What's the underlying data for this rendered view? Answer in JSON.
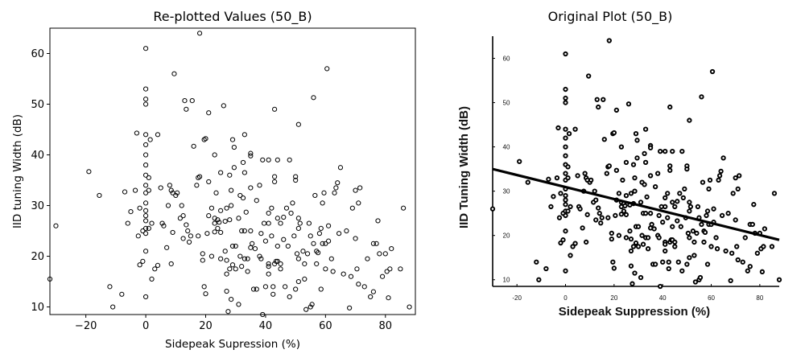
{
  "chart_data": [
    {
      "type": "scatter",
      "title": "Re-plotted Values (50_B)",
      "xlabel": "Sidepeak Supression (%)",
      "ylabel": "IID tuning Width (dB)",
      "xlim": [
        -32,
        90
      ],
      "ylim": [
        8.5,
        65
      ],
      "xticks": [
        -20,
        0,
        20,
        40,
        60,
        80
      ],
      "yticks": [
        10,
        20,
        30,
        40,
        50,
        60
      ],
      "marker": "open-circle",
      "points": [
        [
          -32,
          15.5
        ],
        [
          -30,
          26
        ],
        [
          -19,
          36.7
        ],
        [
          -15.5,
          32
        ],
        [
          -12,
          14
        ],
        [
          -11,
          10
        ],
        [
          -8,
          12.5
        ],
        [
          -7,
          32.7
        ],
        [
          -6,
          26.5
        ],
        [
          -5,
          28.8
        ],
        [
          -3.5,
          33
        ],
        [
          -3,
          44.3
        ],
        [
          -2.5,
          24
        ],
        [
          -2,
          29.5
        ],
        [
          -2,
          18.3
        ],
        [
          -1,
          25
        ],
        [
          -1,
          19
        ],
        [
          0,
          61
        ],
        [
          0,
          53
        ],
        [
          0,
          51
        ],
        [
          0,
          50
        ],
        [
          0,
          44
        ],
        [
          0,
          42
        ],
        [
          0,
          40
        ],
        [
          0,
          38
        ],
        [
          0,
          36
        ],
        [
          0,
          34
        ],
        [
          0,
          32.5
        ],
        [
          0,
          30.5
        ],
        [
          0,
          29
        ],
        [
          0,
          28
        ],
        [
          0,
          27
        ],
        [
          0,
          25.5
        ],
        [
          0,
          24.5
        ],
        [
          0,
          21
        ],
        [
          0,
          12
        ],
        [
          1,
          35.5
        ],
        [
          1,
          33
        ],
        [
          1,
          25.5
        ],
        [
          1.5,
          43
        ],
        [
          2,
          26.5
        ],
        [
          2,
          15.5
        ],
        [
          3,
          17.5
        ],
        [
          4,
          18.2
        ],
        [
          4,
          44
        ],
        [
          5,
          33.5
        ],
        [
          5.5,
          26.5
        ],
        [
          6,
          26
        ],
        [
          7,
          21.7
        ],
        [
          7.5,
          30
        ],
        [
          8,
          34
        ],
        [
          8.5,
          33
        ],
        [
          8.5,
          18.5
        ],
        [
          9,
          32.5
        ],
        [
          9,
          24.7
        ],
        [
          9.5,
          56
        ],
        [
          10,
          32
        ],
        [
          10.5,
          32.5
        ],
        [
          11.5,
          27.5
        ],
        [
          12,
          30
        ],
        [
          12.5,
          28
        ],
        [
          12.5,
          23.5
        ],
        [
          13,
          50.7
        ],
        [
          13.5,
          49
        ],
        [
          13.5,
          26.2
        ],
        [
          14,
          25
        ],
        [
          14.5,
          22.8
        ],
        [
          15,
          24
        ],
        [
          15.5,
          50.7
        ],
        [
          16,
          41.7
        ],
        [
          17,
          34
        ],
        [
          17.5,
          35.5
        ],
        [
          17.5,
          24
        ],
        [
          18,
          64
        ],
        [
          18,
          35.7
        ],
        [
          19,
          20.5
        ],
        [
          19,
          19.2
        ],
        [
          19.5,
          43
        ],
        [
          19.5,
          14
        ],
        [
          20,
          43.2
        ],
        [
          20,
          12.6
        ],
        [
          20.5,
          24.5
        ],
        [
          21,
          48.3
        ],
        [
          21,
          34.7
        ],
        [
          21,
          28
        ],
        [
          22,
          29.5
        ],
        [
          22,
          20
        ],
        [
          23,
          40
        ],
        [
          23,
          27.5
        ],
        [
          23,
          26.5
        ],
        [
          23,
          24.8
        ],
        [
          23.5,
          32.5
        ],
        [
          24,
          27.2
        ],
        [
          24,
          25.5
        ],
        [
          24.5,
          26.7
        ],
        [
          25,
          36.5
        ],
        [
          25,
          29
        ],
        [
          25,
          24.7
        ],
        [
          25,
          19.5
        ],
        [
          26,
          49.7
        ],
        [
          26.5,
          26.9
        ],
        [
          26.5,
          21
        ],
        [
          27,
          29.5
        ],
        [
          27,
          19.2
        ],
        [
          27,
          16.5
        ],
        [
          27,
          13.1
        ],
        [
          27.5,
          9.1
        ],
        [
          28,
          36
        ],
        [
          28,
          27.2
        ],
        [
          28,
          17.5
        ],
        [
          28.5,
          33
        ],
        [
          28.5,
          30
        ],
        [
          28.5,
          11.5
        ],
        [
          29,
          43
        ],
        [
          29,
          22
        ],
        [
          29,
          18.3
        ],
        [
          29.5,
          37.5
        ],
        [
          29.5,
          41.5
        ],
        [
          30,
          22
        ],
        [
          30,
          17.5
        ],
        [
          31,
          27.5
        ],
        [
          31,
          10.5
        ],
        [
          31.5,
          32
        ],
        [
          31.5,
          20
        ],
        [
          32,
          25
        ],
        [
          32,
          18
        ],
        [
          32.5,
          38.5
        ],
        [
          32.5,
          31.5
        ],
        [
          33,
          44
        ],
        [
          33,
          36.5
        ],
        [
          33,
          25
        ],
        [
          33,
          19.5
        ],
        [
          33.5,
          28.7
        ],
        [
          34,
          19.5
        ],
        [
          34,
          17
        ],
        [
          35,
          40.3
        ],
        [
          35,
          39.8
        ],
        [
          35,
          33.5
        ],
        [
          35,
          25
        ],
        [
          35,
          21.7
        ],
        [
          35.5,
          22.5
        ],
        [
          36,
          13.5
        ],
        [
          36.5,
          21.5
        ],
        [
          37,
          31
        ],
        [
          37,
          13.5
        ],
        [
          38,
          20
        ],
        [
          38,
          34
        ],
        [
          38.5,
          24.5
        ],
        [
          38.5,
          19.5
        ],
        [
          39,
          39
        ],
        [
          39,
          8.5
        ],
        [
          39.5,
          26.5
        ],
        [
          40,
          23
        ],
        [
          40,
          14
        ],
        [
          41,
          39
        ],
        [
          41,
          28.5
        ],
        [
          41,
          26.5
        ],
        [
          41,
          18.5
        ],
        [
          41,
          18
        ],
        [
          41,
          16.5
        ],
        [
          42,
          29.5
        ],
        [
          42,
          24
        ],
        [
          42.5,
          14
        ],
        [
          42.5,
          12.5
        ],
        [
          43,
          49
        ],
        [
          43,
          35.7
        ],
        [
          43,
          34.7
        ],
        [
          43,
          18.5
        ],
        [
          43.5,
          19
        ],
        [
          44,
          39
        ],
        [
          44,
          27.5
        ],
        [
          44,
          22
        ],
        [
          44,
          19
        ],
        [
          45,
          26.5
        ],
        [
          45,
          18.5
        ],
        [
          45,
          17.5
        ],
        [
          46,
          27.7
        ],
        [
          46,
          23.3
        ],
        [
          46.5,
          14
        ],
        [
          47,
          29.5
        ],
        [
          47.5,
          22
        ],
        [
          48,
          39
        ],
        [
          48,
          12
        ],
        [
          48.5,
          28.5
        ],
        [
          49,
          30.5
        ],
        [
          49.5,
          24
        ],
        [
          50,
          35.7
        ],
        [
          50,
          35
        ],
        [
          50,
          13.5
        ],
        [
          50.5,
          20.5
        ],
        [
          51,
          46
        ],
        [
          51,
          27.5
        ],
        [
          51,
          25.5
        ],
        [
          51,
          19.5
        ],
        [
          51,
          15
        ],
        [
          51.5,
          26.5
        ],
        [
          52.5,
          21
        ],
        [
          53,
          18.5
        ],
        [
          53,
          15.5
        ],
        [
          53.5,
          9.5
        ],
        [
          54,
          20.5
        ],
        [
          54.5,
          26.5
        ],
        [
          55,
          10
        ],
        [
          55,
          24
        ],
        [
          55.5,
          10.5
        ],
        [
          56,
          51.3
        ],
        [
          56,
          22.5
        ],
        [
          56.5,
          32
        ],
        [
          57,
          21
        ],
        [
          57,
          18.5
        ],
        [
          57.5,
          20.7
        ],
        [
          58,
          24.5
        ],
        [
          58.5,
          13.5
        ],
        [
          58.5,
          25.5
        ],
        [
          59,
          30.5
        ],
        [
          59,
          22.5
        ],
        [
          59.5,
          32.5
        ],
        [
          60,
          22.5
        ],
        [
          60,
          17.5
        ],
        [
          60.5,
          57
        ],
        [
          61,
          23
        ],
        [
          61,
          26
        ],
        [
          62,
          19.5
        ],
        [
          62.5,
          17
        ],
        [
          63,
          32.5
        ],
        [
          63.5,
          33.5
        ],
        [
          64,
          34.5
        ],
        [
          64.5,
          24.5
        ],
        [
          65,
          37.5
        ],
        [
          66,
          16.5
        ],
        [
          67,
          25
        ],
        [
          68,
          9.8
        ],
        [
          68.5,
          16
        ],
        [
          69,
          29.5
        ],
        [
          70,
          33
        ],
        [
          70,
          23.5
        ],
        [
          70.5,
          17.5
        ],
        [
          71,
          14.5
        ],
        [
          71,
          30.5
        ],
        [
          71.5,
          33.5
        ],
        [
          73,
          14
        ],
        [
          74,
          19.5
        ],
        [
          75,
          12
        ],
        [
          76,
          13
        ],
        [
          76,
          22.5
        ],
        [
          77,
          22.5
        ],
        [
          77.5,
          27
        ],
        [
          78,
          20.5
        ],
        [
          79,
          16
        ],
        [
          80,
          20.5
        ],
        [
          80.5,
          17
        ],
        [
          81,
          11.8
        ],
        [
          81.5,
          17.5
        ],
        [
          82,
          21.5
        ],
        [
          85,
          17.5
        ],
        [
          86,
          29.5
        ],
        [
          88,
          10
        ]
      ]
    },
    {
      "type": "scatter",
      "title": "Original Plot (50_B)",
      "xlabel": "Sidepeak Suppression (%)",
      "ylabel": "IID Tuning Width (dB)",
      "xlim": [
        -30,
        88
      ],
      "ylim": [
        8.5,
        65
      ],
      "xticks": [
        -20,
        0,
        20,
        40,
        60,
        80
      ],
      "yticks": [
        10,
        20,
        30,
        40,
        50,
        60
      ],
      "marker": "bold-open-circle",
      "regression_line": {
        "x": [
          -30,
          88
        ],
        "y": [
          35,
          19
        ]
      },
      "uses_points_of_series": 0
    }
  ]
}
